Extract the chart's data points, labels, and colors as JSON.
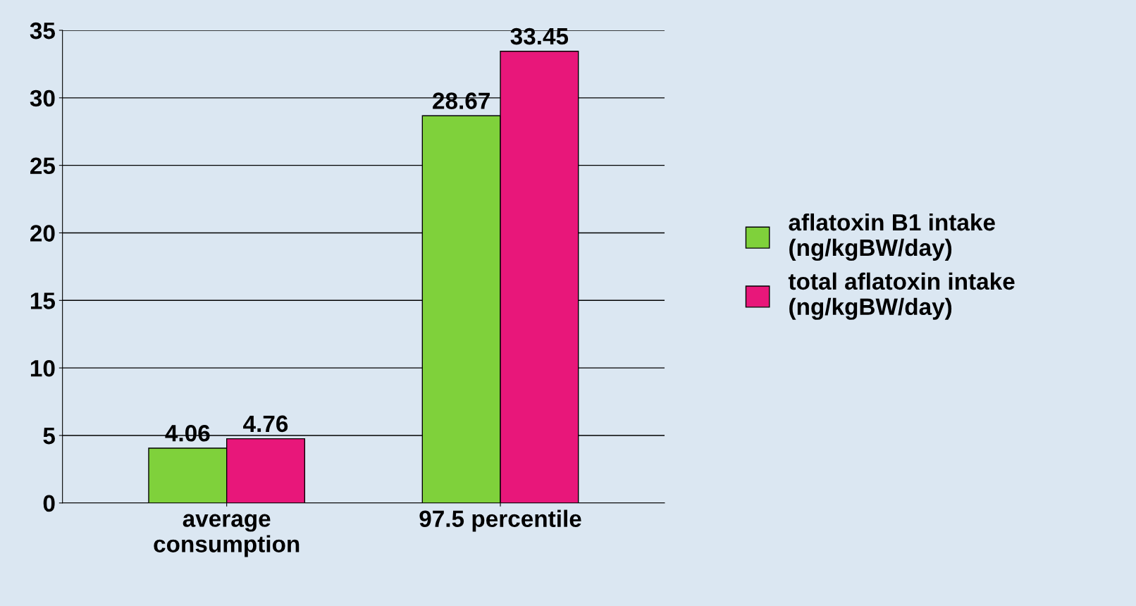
{
  "chart_data": {
    "type": "bar",
    "categories": [
      "average\nconsumption",
      "97.5 percentile"
    ],
    "series": [
      {
        "name": "aflatoxin B1 intake\n(ng/kgBW/day)",
        "color": "#7fd13b",
        "values": [
          4.06,
          28.67
        ]
      },
      {
        "name": "total aflatoxin intake\n(ng/kgBW/day)",
        "color": "#e8177a",
        "values": [
          4.76,
          33.45
        ]
      }
    ],
    "ylim": [
      0,
      35
    ],
    "yticks": [
      0,
      5,
      10,
      15,
      20,
      25,
      30,
      35
    ],
    "grid": "y",
    "legend": "right",
    "data_labels": true
  }
}
